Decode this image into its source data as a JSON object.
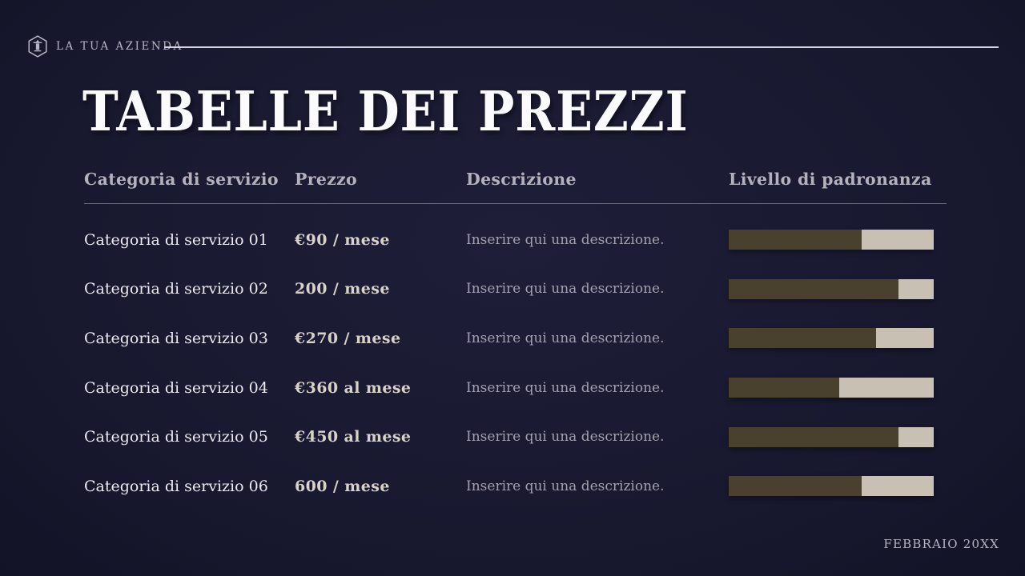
{
  "brand": {
    "name": "LA TUA AZIENDA",
    "logo_icon": "hexagon-column-icon"
  },
  "title": "TABELLE DEI PREZZI",
  "table": {
    "headers": [
      "Categoria di servizio",
      "Prezzo",
      "Descrizione",
      "Livello di padronanza"
    ],
    "rows": [
      {
        "category": "Categoria di servizio 01",
        "price": "€90 / mese",
        "description": "Inserire qui una descrizione.",
        "mastery_pct": 65
      },
      {
        "category": "Categoria di servizio 02",
        "price": "200 / mese",
        "description": "Inserire qui una descrizione.",
        "mastery_pct": 83
      },
      {
        "category": "Categoria di servizio 03",
        "price": "€270 / mese",
        "description": "Inserire qui una descrizione.",
        "mastery_pct": 72
      },
      {
        "category": "Categoria di servizio 04",
        "price": "€360 al mese",
        "description": "Inserire qui una descrizione.",
        "mastery_pct": 54
      },
      {
        "category": "Categoria di servizio 05",
        "price": "€450 al mese",
        "description": "Inserire qui una descrizione.",
        "mastery_pct": 83
      },
      {
        "category": "Categoria di servizio 06",
        "price": "600 / mese",
        "description": "Inserire qui una descrizione.",
        "mastery_pct": 65
      }
    ]
  },
  "footer": {
    "date": "FEBBRAIO 20XX"
  },
  "colors": {
    "background": "#18182f",
    "bar_fill": "#4a402e",
    "bar_track": "#c9c0b4",
    "title_text": "#fbfbfd",
    "muted_text": "#a3a0af",
    "header_text": "#b4b1bd"
  }
}
